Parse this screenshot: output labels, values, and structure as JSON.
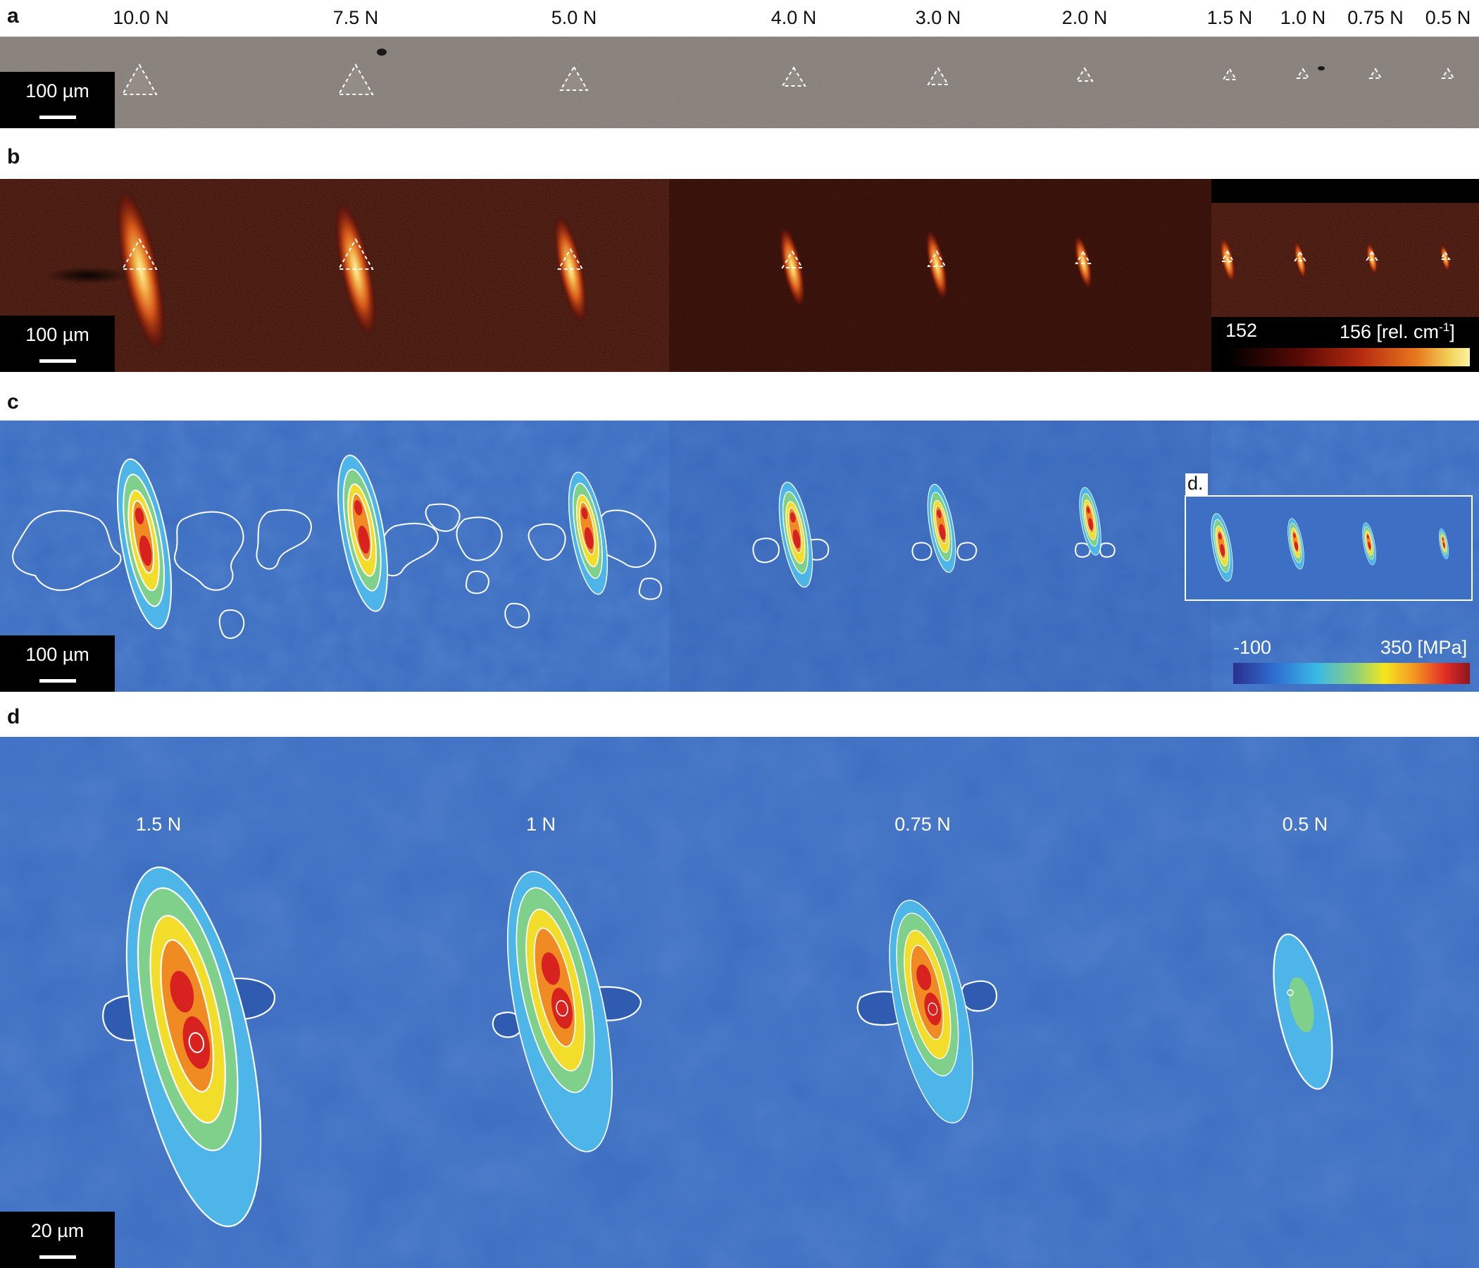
{
  "panels": {
    "a": {
      "label": "a",
      "scale_bar": "100 µm"
    },
    "b": {
      "label": "b",
      "scale_bar": "100 µm",
      "colorbar": {
        "min": "152",
        "max": "156 [rel. cm",
        "sup": "-1",
        "close": "]"
      }
    },
    "c": {
      "label": "c",
      "scale_bar": "100 µm",
      "inset_label": "d.",
      "colorbar": {
        "min": "-100",
        "max": "350 [MPa]"
      }
    },
    "d": {
      "label": "d",
      "scale_bar": "20 µm"
    }
  },
  "forces_top": [
    "10.0 N",
    "7.5 N",
    "5.0 N",
    "4.0 N",
    "3.0 N",
    "2.0 N",
    "1.5 N",
    "1.0 N",
    "0.75 N",
    "0.5 N"
  ],
  "forces_d": [
    "1.5 N",
    "1 N",
    "0.75 N",
    "0.5 N"
  ],
  "colors": {
    "optical_bg": "#7f7873",
    "raman_bg": "#2a0a05",
    "stress_bg": "#3a6cc0",
    "colormap_stress": [
      "#2b2f8f",
      "#2f6fd0",
      "#38b8e6",
      "#8fd07a",
      "#f4e61c",
      "#f59a22",
      "#e02a25",
      "#8a1620"
    ],
    "colormap_raman": [
      "#000000",
      "#5a0a05",
      "#b52a10",
      "#e8781e",
      "#f2d45c",
      "#fbf3a0"
    ]
  }
}
